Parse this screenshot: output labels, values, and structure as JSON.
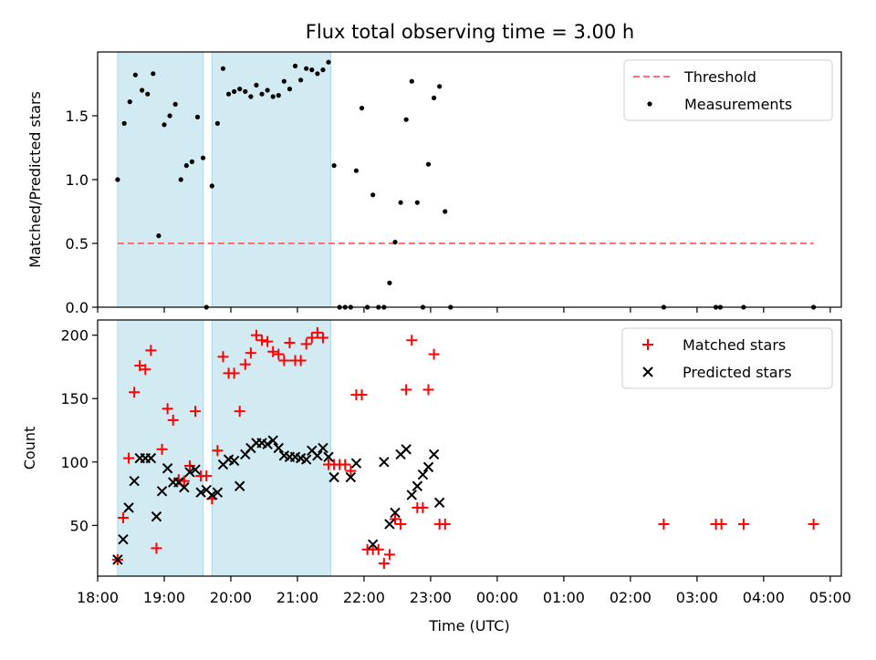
{
  "title": "Flux total observing time = 3.00 h",
  "colors": {
    "shade": "#add8e6",
    "threshold": "#ff6f6f",
    "measurement": "#000000",
    "matched": "#ff0000",
    "predicted": "#000000"
  },
  "chart_data": [
    {
      "type": "scatter",
      "ylabel": "Matched/Predicted stars",
      "xlim": [
        "18:00",
        "05:10"
      ],
      "ylim": [
        0,
        2.0
      ],
      "yticks": [
        "0.0",
        "0.5",
        "1.0",
        "1.5"
      ],
      "legend": "top-right",
      "shaded_intervals": [
        [
          "18:18",
          "19:35"
        ],
        [
          "19:43",
          "21:30"
        ]
      ],
      "threshold": {
        "name": "Threshold",
        "value": 0.5,
        "x": [
          "18:18",
          "04:45"
        ]
      },
      "series": [
        {
          "name": "Measurements",
          "points": [
            [
              "18:18",
              1.0
            ],
            [
              "18:24",
              1.44
            ],
            [
              "18:29",
              1.61
            ],
            [
              "18:34",
              1.82
            ],
            [
              "18:40",
              1.7
            ],
            [
              "18:45",
              1.67
            ],
            [
              "18:50",
              1.83
            ],
            [
              "18:55",
              0.56
            ],
            [
              "19:00",
              1.43
            ],
            [
              "19:05",
              1.5
            ],
            [
              "19:10",
              1.59
            ],
            [
              "19:15",
              1.0
            ],
            [
              "19:20",
              1.11
            ],
            [
              "19:25",
              1.14
            ],
            [
              "19:30",
              1.49
            ],
            [
              "19:35",
              1.17
            ],
            [
              "19:38",
              0.0
            ],
            [
              "19:43",
              0.95
            ],
            [
              "19:48",
              1.44
            ],
            [
              "19:53",
              1.87
            ],
            [
              "19:58",
              1.67
            ],
            [
              "20:03",
              1.69
            ],
            [
              "20:08",
              1.71
            ],
            [
              "20:13",
              1.69
            ],
            [
              "20:18",
              1.65
            ],
            [
              "20:23",
              1.74
            ],
            [
              "20:28",
              1.67
            ],
            [
              "20:33",
              1.7
            ],
            [
              "20:38",
              1.65
            ],
            [
              "20:43",
              1.66
            ],
            [
              "20:48",
              1.77
            ],
            [
              "20:53",
              1.71
            ],
            [
              "20:58",
              1.89
            ],
            [
              "21:03",
              1.78
            ],
            [
              "21:08",
              1.87
            ],
            [
              "21:13",
              1.86
            ],
            [
              "21:18",
              1.83
            ],
            [
              "21:23",
              1.86
            ],
            [
              "21:28",
              1.92
            ],
            [
              "21:33",
              1.11
            ],
            [
              "21:38",
              0.0
            ],
            [
              "21:43",
              0.0
            ],
            [
              "21:48",
              0.0
            ],
            [
              "21:53",
              1.07
            ],
            [
              "21:58",
              1.56
            ],
            [
              "22:03",
              0.0
            ],
            [
              "22:08",
              0.88
            ],
            [
              "22:13",
              0.0
            ],
            [
              "22:18",
              0.0
            ],
            [
              "22:23",
              0.19
            ],
            [
              "22:28",
              0.51
            ],
            [
              "22:33",
              0.82
            ],
            [
              "22:38",
              1.47
            ],
            [
              "22:43",
              1.77
            ],
            [
              "22:48",
              0.82
            ],
            [
              "22:53",
              0.0
            ],
            [
              "22:58",
              1.12
            ],
            [
              "23:03",
              1.64
            ],
            [
              "23:08",
              1.73
            ],
            [
              "23:13",
              0.75
            ],
            [
              "23:18",
              0.0
            ],
            [
              "02:30",
              0.0
            ],
            [
              "03:17",
              0.0
            ],
            [
              "03:21",
              0.0
            ],
            [
              "03:42",
              0.0
            ],
            [
              "04:45",
              0.0
            ]
          ]
        }
      ]
    },
    {
      "type": "scatter",
      "ylabel": "Count",
      "xlabel": "Time (UTC)",
      "xlim": [
        "18:00",
        "05:10"
      ],
      "ylim": [
        10,
        212
      ],
      "yticks": [
        "50",
        "100",
        "150",
        "200"
      ],
      "xticks": [
        "18:00",
        "19:00",
        "20:00",
        "21:00",
        "22:00",
        "23:00",
        "00:00",
        "01:00",
        "02:00",
        "03:00",
        "04:00",
        "05:00"
      ],
      "legend": "top-right",
      "shaded_intervals": [
        [
          "18:18",
          "19:35"
        ],
        [
          "19:43",
          "21:30"
        ]
      ],
      "series": [
        {
          "name": "Matched stars",
          "marker": "plus",
          "points": [
            [
              "18:18",
              23
            ],
            [
              "18:23",
              56
            ],
            [
              "18:28",
              103
            ],
            [
              "18:33",
              155
            ],
            [
              "18:38",
              176
            ],
            [
              "18:43",
              173
            ],
            [
              "18:48",
              188
            ],
            [
              "18:53",
              32
            ],
            [
              "18:58",
              110
            ],
            [
              "19:03",
              142
            ],
            [
              "19:08",
              133
            ],
            [
              "19:13",
              86
            ],
            [
              "19:18",
              85
            ],
            [
              "19:23",
              97
            ],
            [
              "19:28",
              140
            ],
            [
              "19:33",
              89
            ],
            [
              "19:38",
              89
            ],
            [
              "19:43",
              71
            ],
            [
              "19:48",
              109
            ],
            [
              "19:53",
              183
            ],
            [
              "19:58",
              170
            ],
            [
              "20:03",
              170
            ],
            [
              "20:08",
              140
            ],
            [
              "20:13",
              177
            ],
            [
              "20:18",
              186
            ],
            [
              "20:23",
              200
            ],
            [
              "20:28",
              196
            ],
            [
              "20:33",
              195
            ],
            [
              "20:38",
              187
            ],
            [
              "20:43",
              185
            ],
            [
              "20:48",
              180
            ],
            [
              "20:53",
              194
            ],
            [
              "20:58",
              180
            ],
            [
              "21:03",
              180
            ],
            [
              "21:08",
              193
            ],
            [
              "21:13",
              198
            ],
            [
              "21:18",
              202
            ],
            [
              "21:23",
              198
            ],
            [
              "21:28",
              98
            ],
            [
              "21:33",
              98
            ],
            [
              "21:38",
              98
            ],
            [
              "21:43",
              98
            ],
            [
              "21:48",
              93
            ],
            [
              "21:53",
              153
            ],
            [
              "21:58",
              153
            ],
            [
              "22:03",
              31
            ],
            [
              "22:08",
              31
            ],
            [
              "22:13",
              31
            ],
            [
              "22:18",
              20
            ],
            [
              "22:23",
              27
            ],
            [
              "22:28",
              55
            ],
            [
              "22:33",
              51
            ],
            [
              "22:38",
              157
            ],
            [
              "22:43",
              196
            ],
            [
              "22:48",
              64
            ],
            [
              "22:53",
              64
            ],
            [
              "22:58",
              157
            ],
            [
              "23:03",
              185
            ],
            [
              "23:08",
              51
            ],
            [
              "23:13",
              51
            ],
            [
              "02:30",
              51
            ],
            [
              "03:17",
              51
            ],
            [
              "03:22",
              51
            ],
            [
              "03:42",
              51
            ],
            [
              "04:45",
              51
            ]
          ]
        },
        {
          "name": "Predicted stars",
          "marker": "x",
          "points": [
            [
              "18:18",
              23
            ],
            [
              "18:23",
              39
            ],
            [
              "18:28",
              64
            ],
            [
              "18:33",
              85
            ],
            [
              "18:38",
              103
            ],
            [
              "18:43",
              103
            ],
            [
              "18:48",
              103
            ],
            [
              "18:53",
              57
            ],
            [
              "18:58",
              77
            ],
            [
              "19:03",
              95
            ],
            [
              "19:08",
              84
            ],
            [
              "19:13",
              84
            ],
            [
              "19:18",
              80
            ],
            [
              "19:23",
              92
            ],
            [
              "19:28",
              94
            ],
            [
              "19:33",
              76
            ],
            [
              "19:38",
              78
            ],
            [
              "19:43",
              74
            ],
            [
              "19:48",
              76
            ],
            [
              "19:53",
              98
            ],
            [
              "19:58",
              102
            ],
            [
              "20:03",
              101
            ],
            [
              "20:08",
              81
            ],
            [
              "20:13",
              106
            ],
            [
              "20:18",
              111
            ],
            [
              "20:23",
              115
            ],
            [
              "20:28",
              115
            ],
            [
              "20:33",
              114
            ],
            [
              "20:38",
              117
            ],
            [
              "20:43",
              111
            ],
            [
              "20:48",
              105
            ],
            [
              "20:53",
              104
            ],
            [
              "20:58",
              104
            ],
            [
              "21:03",
              103
            ],
            [
              "21:08",
              102
            ],
            [
              "21:13",
              109
            ],
            [
              "21:18",
              105
            ],
            [
              "21:23",
              111
            ],
            [
              "21:28",
              104
            ],
            [
              "21:33",
              88
            ],
            [
              "21:48",
              88
            ],
            [
              "21:53",
              99
            ],
            [
              "22:08",
              35
            ],
            [
              "22:18",
              100
            ],
            [
              "22:23",
              51
            ],
            [
              "22:28",
              60
            ],
            [
              "22:33",
              106
            ],
            [
              "22:38",
              110
            ],
            [
              "22:43",
              74
            ],
            [
              "22:48",
              81
            ],
            [
              "22:53",
              90
            ],
            [
              "22:58",
              96
            ],
            [
              "23:03",
              106
            ],
            [
              "23:08",
              68
            ]
          ]
        }
      ]
    }
  ]
}
